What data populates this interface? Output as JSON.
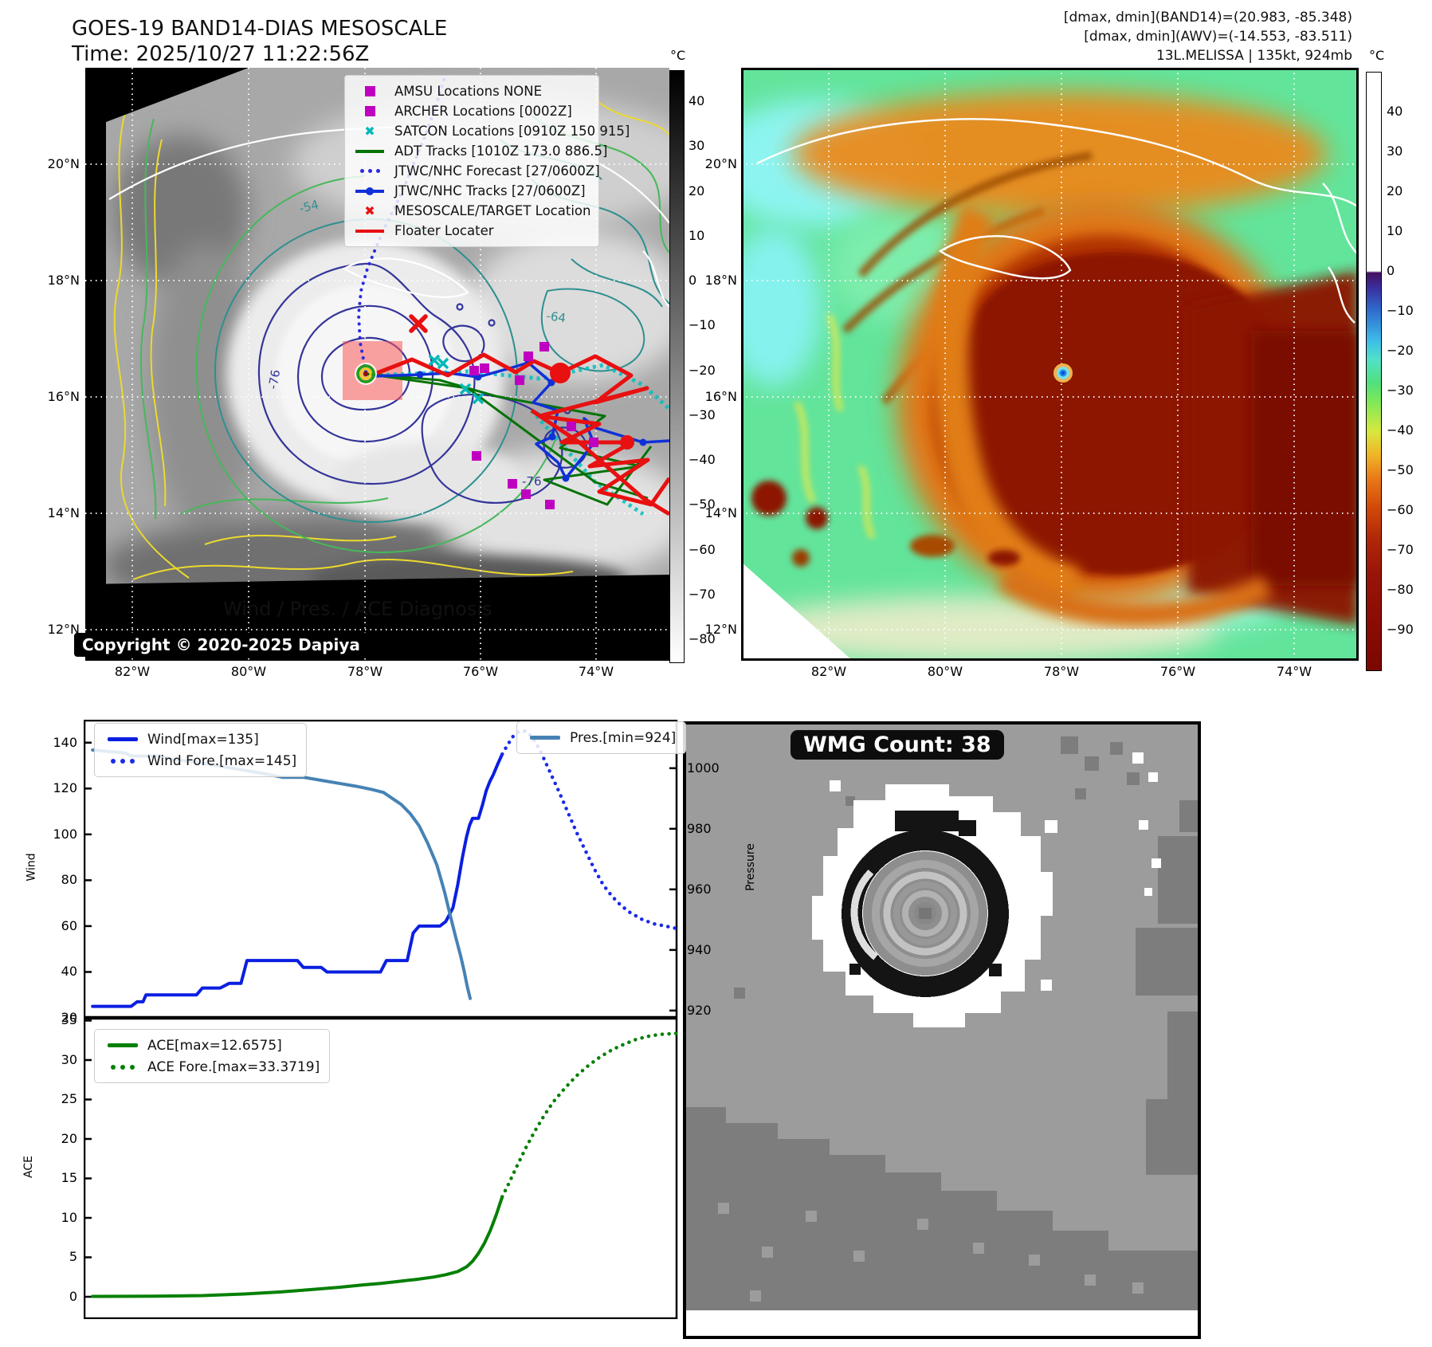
{
  "header": {
    "title_line1": "GOES-19 BAND14-DIAS MESOSCALE",
    "title_line2": "Time: 2025/10/27 11:22:56Z",
    "info_line1": "[dmax, dmin](BAND14)=(20.983, -85.348)",
    "info_line2": "[dmax, dmin](AWV)=(-14.553, -83.511)",
    "info_line3": "13L.MELISSA | 135kt, 924mb"
  },
  "band14_map": {
    "legend": [
      {
        "label": "AMSU Locations NONE",
        "marker": "square",
        "color": "#c000c0"
      },
      {
        "label": "ARCHER Locations [0002Z]",
        "marker": "square",
        "color": "#c000c0"
      },
      {
        "label": "SATCON Locations [0910Z 150 915]",
        "marker": "x",
        "color": "#00b8b8"
      },
      {
        "label": "ADT Tracks [1010Z 173.0 886.5]",
        "marker": "line",
        "color": "#067306"
      },
      {
        "label": "JTWC/NHC Forecast [27/0600Z]",
        "marker": "dotted",
        "color": "#2a2ae0"
      },
      {
        "label": "JTWC/NHC Tracks [27/0600Z]",
        "marker": "line-dot",
        "color": "#1030d8"
      },
      {
        "label": "MESOSCALE/TARGET Location",
        "marker": "x",
        "color": "#e81010"
      },
      {
        "label": "Floater Locater",
        "marker": "line",
        "color": "#e81010"
      }
    ],
    "lat_ticks": [
      "20°N",
      "18°N",
      "16°N",
      "14°N",
      "12°N"
    ],
    "lon_ticks": [
      "82°W",
      "80°W",
      "78°W",
      "76°W",
      "74°W"
    ],
    "colorbar_unit": "°C",
    "colorbar_ticks": [
      "40",
      "30",
      "20",
      "10",
      "0",
      "−10",
      "−20",
      "−30",
      "−40",
      "−50",
      "−60",
      "−70",
      "−80"
    ],
    "contour_labels": [
      "-54",
      "-64",
      "-76",
      "-76"
    ],
    "copyright": "Copyright © 2020-2025 Dapiya"
  },
  "awv_map": {
    "lat_ticks": [
      "20°N",
      "18°N",
      "16°N",
      "14°N",
      "12°N"
    ],
    "lon_ticks": [
      "82°W",
      "80°W",
      "78°W",
      "76°W",
      "74°W"
    ],
    "colorbar_unit": "°C",
    "colorbar_ticks": [
      "40",
      "30",
      "20",
      "10",
      "0",
      "−10",
      "−20",
      "−30",
      "−40",
      "−50",
      "−60",
      "−70",
      "−80",
      "−90"
    ]
  },
  "wmg": {
    "count_label": "WMG Count: 38"
  },
  "chart_data": [
    {
      "type": "line",
      "title": "Wind / Pres. / ACE Diagnosis",
      "ylabel": "Wind",
      "y2label": "Pressure",
      "ylim": [
        20,
        150
      ],
      "y2lim": [
        917.6,
        1016
      ],
      "yticks": [
        140,
        120,
        100,
        80,
        60,
        40,
        20
      ],
      "y2ticks": [
        1000,
        980,
        960,
        940,
        920
      ],
      "series": [
        {
          "name": "Wind[max=135]",
          "color": "#0b1fe0",
          "style": "solid",
          "axis": "left",
          "points": [
            [
              0.015,
              25
            ],
            [
              0.08,
              25
            ],
            [
              0.09,
              27
            ],
            [
              0.1,
              27
            ],
            [
              0.105,
              30
            ],
            [
              0.19,
              30
            ],
            [
              0.2,
              33
            ],
            [
              0.23,
              33
            ],
            [
              0.245,
              35
            ],
            [
              0.265,
              35
            ],
            [
              0.275,
              45
            ],
            [
              0.36,
              45
            ],
            [
              0.37,
              42
            ],
            [
              0.4,
              42
            ],
            [
              0.41,
              40
            ],
            [
              0.5,
              40
            ],
            [
              0.51,
              45
            ],
            [
              0.545,
              45
            ],
            [
              0.555,
              57
            ],
            [
              0.565,
              60
            ],
            [
              0.6,
              60
            ],
            [
              0.61,
              62
            ],
            [
              0.622,
              68
            ],
            [
              0.63,
              78
            ],
            [
              0.638,
              90
            ],
            [
              0.645,
              99
            ],
            [
              0.65,
              104
            ],
            [
              0.655,
              107
            ],
            [
              0.665,
              107
            ],
            [
              0.672,
              113
            ],
            [
              0.678,
              119
            ],
            [
              0.684,
              123
            ],
            [
              0.69,
              126
            ],
            [
              0.698,
              131
            ],
            [
              0.705,
              135
            ]
          ]
        },
        {
          "name": "Wind Fore.[max=145]",
          "color": "#1b2ae8",
          "style": "dotted",
          "axis": "left",
          "points": [
            [
              0.705,
              135
            ],
            [
              0.714,
              139
            ],
            [
              0.724,
              143
            ],
            [
              0.734,
              145
            ],
            [
              0.745,
              145
            ],
            [
              0.757,
              142
            ],
            [
              0.77,
              136
            ],
            [
              0.784,
              128
            ],
            [
              0.8,
              119
            ],
            [
              0.815,
              110
            ],
            [
              0.83,
              101
            ],
            [
              0.845,
              93
            ],
            [
              0.86,
              85
            ],
            [
              0.875,
              78
            ],
            [
              0.89,
              73
            ],
            [
              0.905,
              69
            ],
            [
              0.92,
              66
            ],
            [
              0.94,
              63
            ],
            [
              0.96,
              61
            ],
            [
              0.98,
              60
            ],
            [
              0.998,
              59
            ]
          ]
        },
        {
          "name": "Pres.[min=924]",
          "color": "#4682b4",
          "style": "solid",
          "axis": "right",
          "points": [
            [
              0.015,
              1006
            ],
            [
              0.07,
              1005
            ],
            [
              0.08,
              1004
            ],
            [
              0.13,
              1004
            ],
            [
              0.145,
              1003
            ],
            [
              0.19,
              1002
            ],
            [
              0.22,
              1001
            ],
            [
              0.25,
              1000
            ],
            [
              0.28,
              999
            ],
            [
              0.31,
              998
            ],
            [
              0.335,
              997
            ],
            [
              0.37,
              997
            ],
            [
              0.4,
              996
            ],
            [
              0.43,
              995
            ],
            [
              0.46,
              994
            ],
            [
              0.485,
              993
            ],
            [
              0.505,
              992
            ],
            [
              0.52,
              990
            ],
            [
              0.535,
              988
            ],
            [
              0.55,
              985
            ],
            [
              0.565,
              981
            ],
            [
              0.58,
              975
            ],
            [
              0.595,
              968
            ],
            [
              0.608,
              959
            ],
            [
              0.618,
              951
            ],
            [
              0.627,
              944
            ],
            [
              0.635,
              938
            ],
            [
              0.641,
              933
            ],
            [
              0.646,
              928
            ],
            [
              0.651,
              924
            ]
          ]
        }
      ]
    },
    {
      "type": "line",
      "ylabel": "ACE",
      "ylim": [
        -2.83,
        35.35
      ],
      "yticks": [
        35,
        30,
        25,
        20,
        15,
        10,
        5,
        0
      ],
      "series": [
        {
          "name": "ACE[max=12.6575]",
          "color": "#048004",
          "style": "solid",
          "axis": "left",
          "points": [
            [
              0.015,
              0.05
            ],
            [
              0.12,
              0.08
            ],
            [
              0.2,
              0.15
            ],
            [
              0.27,
              0.35
            ],
            [
              0.33,
              0.6
            ],
            [
              0.38,
              0.9
            ],
            [
              0.43,
              1.2
            ],
            [
              0.47,
              1.5
            ],
            [
              0.5,
              1.7
            ],
            [
              0.53,
              1.95
            ],
            [
              0.56,
              2.2
            ],
            [
              0.59,
              2.5
            ],
            [
              0.61,
              2.8
            ],
            [
              0.63,
              3.2
            ],
            [
              0.645,
              3.8
            ],
            [
              0.655,
              4.5
            ],
            [
              0.665,
              5.5
            ],
            [
              0.675,
              6.8
            ],
            [
              0.685,
              8.4
            ],
            [
              0.695,
              10.4
            ],
            [
              0.705,
              12.66
            ]
          ]
        },
        {
          "name": "ACE Fore.[max=33.3719]",
          "color": "#048004",
          "style": "dotted",
          "axis": "left",
          "points": [
            [
              0.705,
              12.66
            ],
            [
              0.715,
              14.2
            ],
            [
              0.73,
              16.6
            ],
            [
              0.745,
              18.9
            ],
            [
              0.76,
              21.0
            ],
            [
              0.775,
              22.9
            ],
            [
              0.79,
              24.6
            ],
            [
              0.81,
              26.4
            ],
            [
              0.83,
              28.0
            ],
            [
              0.85,
              29.3
            ],
            [
              0.87,
              30.4
            ],
            [
              0.89,
              31.3
            ],
            [
              0.91,
              32.0
            ],
            [
              0.93,
              32.6
            ],
            [
              0.95,
              33.0
            ],
            [
              0.97,
              33.25
            ],
            [
              0.998,
              33.37
            ]
          ]
        }
      ]
    }
  ]
}
